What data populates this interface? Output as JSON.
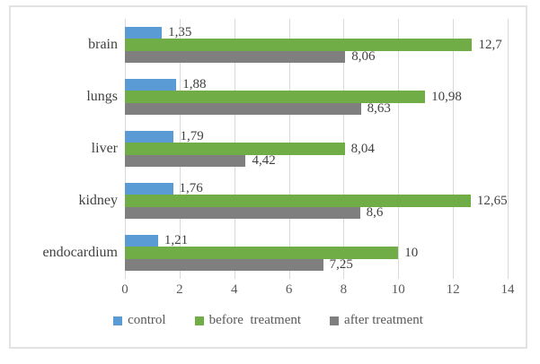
{
  "chart_data": {
    "type": "bar",
    "orientation": "horizontal",
    "title": "",
    "categories": [
      "brain",
      "lungs",
      "liver",
      "kidney",
      "endocardium"
    ],
    "series": [
      {
        "name": "control",
        "color": "#5b9bd5",
        "values": [
          1.35,
          1.88,
          1.79,
          1.76,
          1.21
        ],
        "labels": [
          "1,35",
          "1,88",
          "1,79",
          "1,76",
          "1,21"
        ]
      },
      {
        "name": "before  treatment",
        "color": "#70ad47",
        "values": [
          12.7,
          10.98,
          8.04,
          12.65,
          10
        ],
        "labels": [
          "12,7",
          "10,98",
          "8,04",
          "12,65",
          "10"
        ]
      },
      {
        "name": "after treatment",
        "color": "#7f7f7f",
        "values": [
          8.06,
          8.63,
          4.42,
          8.6,
          7.25
        ],
        "labels": [
          "8,06",
          "8,63",
          "4,42",
          "8,6",
          "7,25"
        ]
      }
    ],
    "xlim": [
      0,
      14
    ],
    "xticks": [
      0,
      2,
      4,
      6,
      8,
      10,
      12,
      14
    ],
    "grid": true,
    "legend_position": "bottom",
    "colors": {
      "gridline": "#d9d9d9",
      "frame_border": "#e2e2e2",
      "tick_text": "#595959",
      "value_text": "#404040",
      "category_text": "#404040",
      "legend_text": "#595959"
    }
  }
}
